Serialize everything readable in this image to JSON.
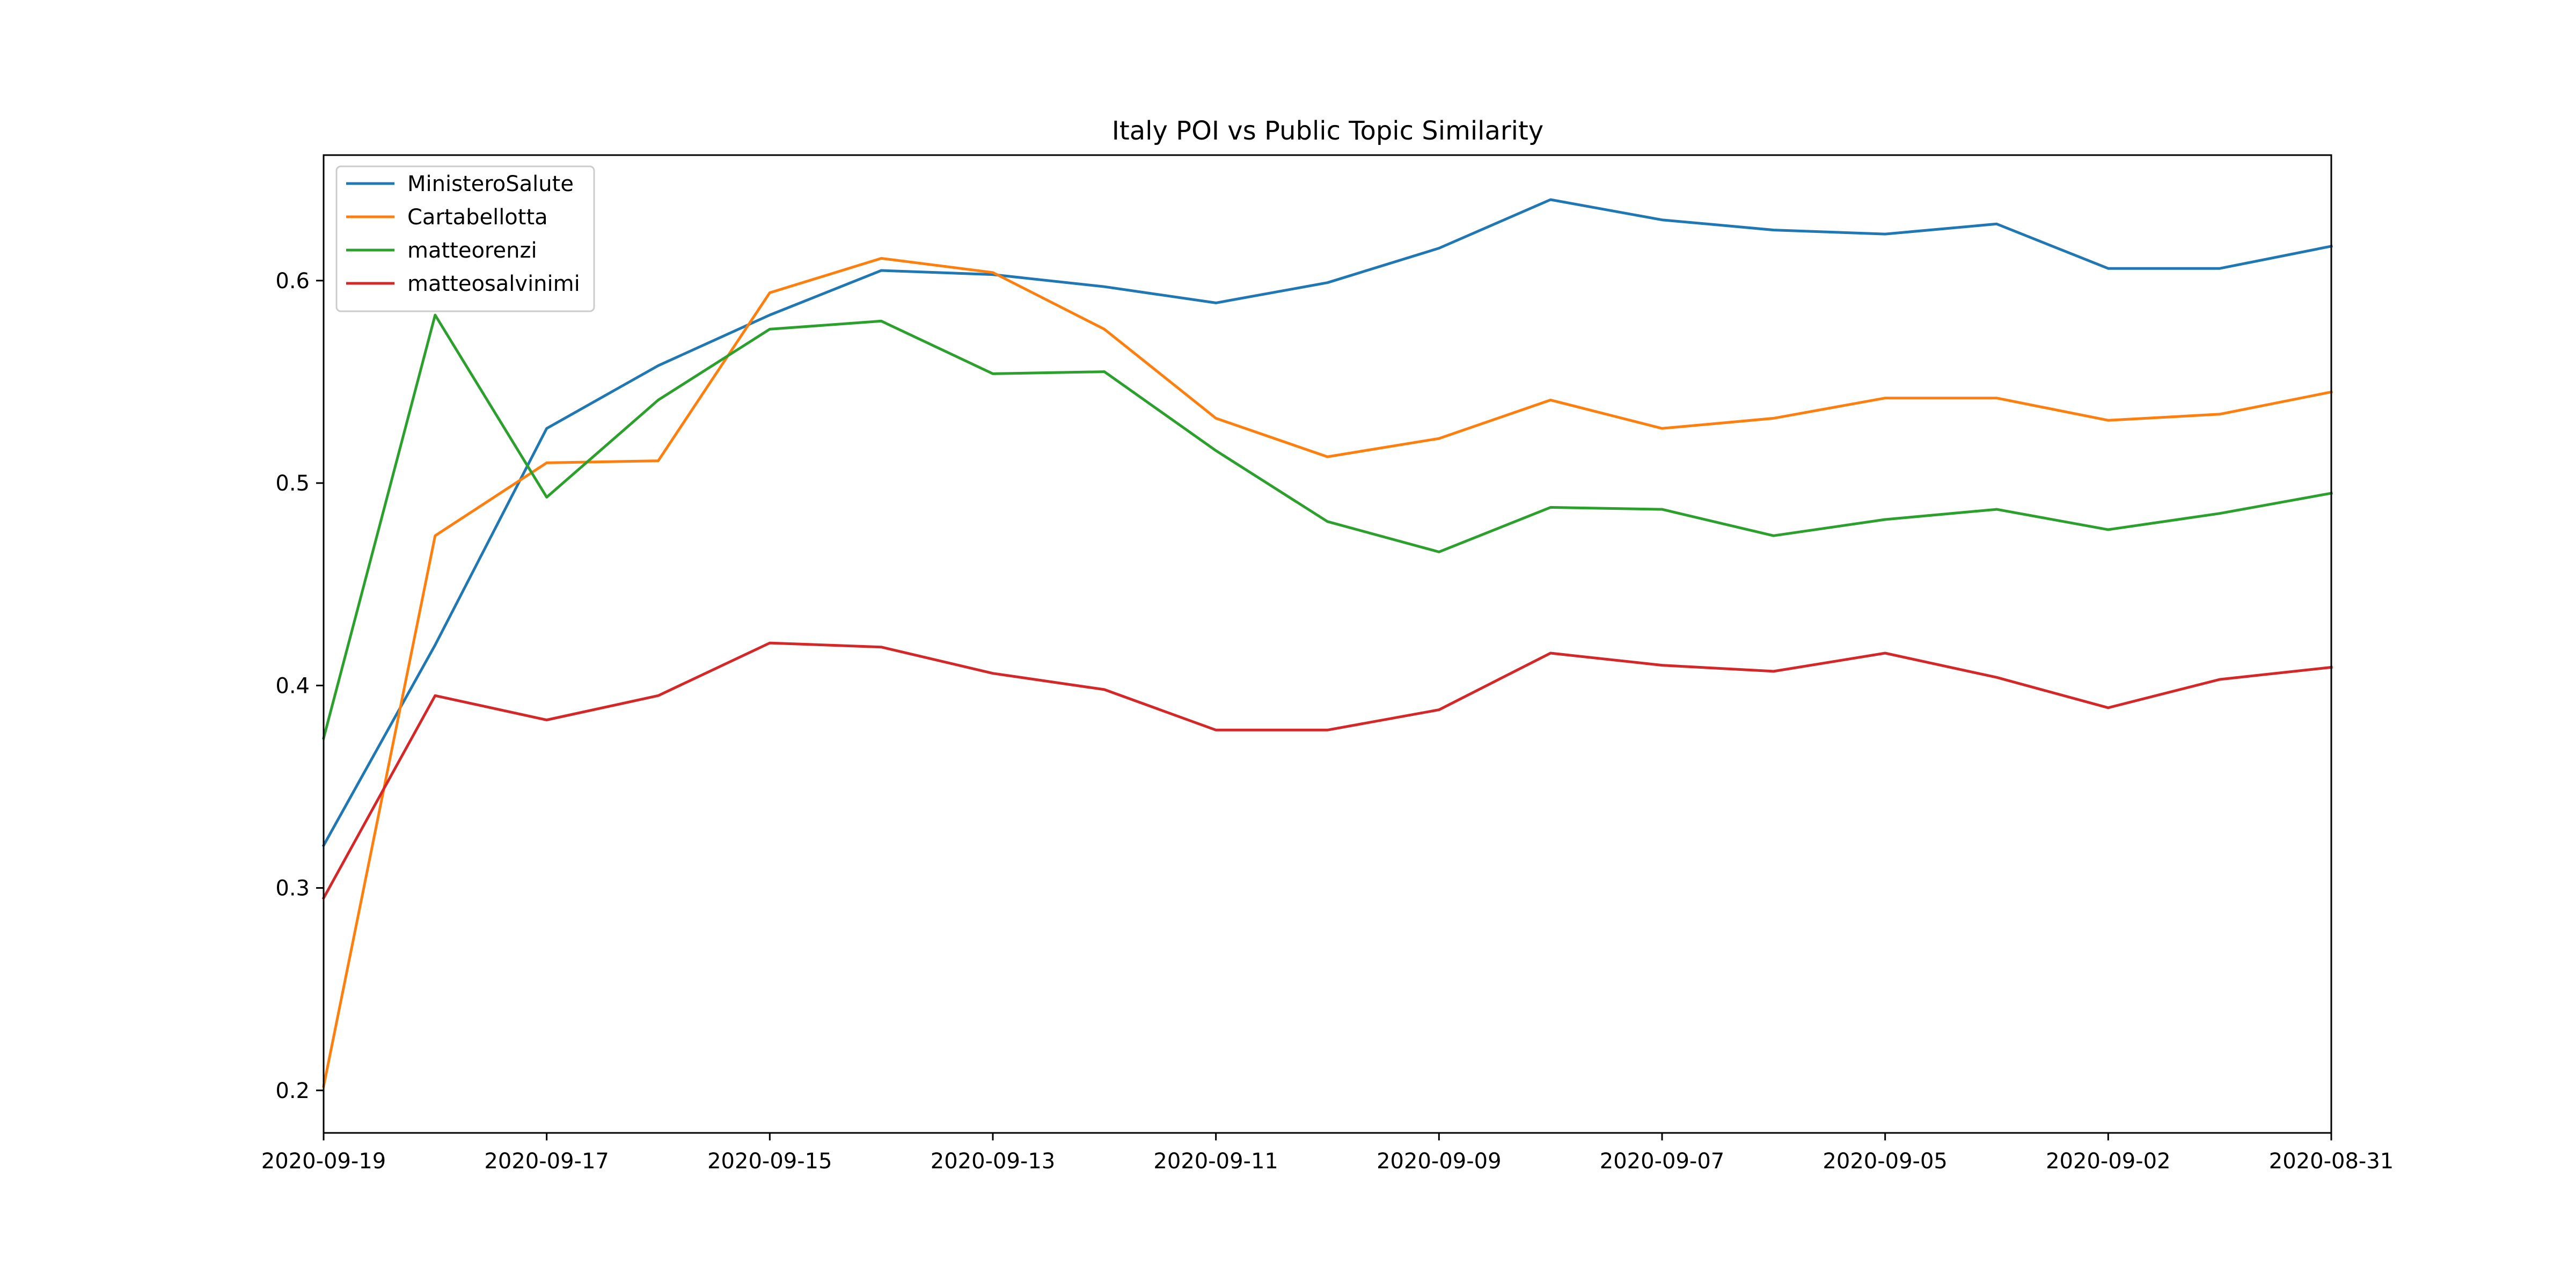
{
  "chart_data": {
    "type": "line",
    "title": "Italy POI vs Public Topic Similarity",
    "xlabel": "",
    "ylabel": "",
    "x": [
      "2020-09-19",
      "2020-09-18",
      "2020-09-17",
      "2020-09-16",
      "2020-09-15",
      "2020-09-14",
      "2020-09-13",
      "2020-09-12",
      "2020-09-11",
      "2020-09-10",
      "2020-09-09",
      "2020-09-08",
      "2020-09-07",
      "2020-09-06",
      "2020-09-05",
      "2020-09-04",
      "2020-09-02",
      "2020-09-01",
      "2020-08-31"
    ],
    "xticks": [
      "2020-09-19",
      "2020-09-17",
      "2020-09-15",
      "2020-09-13",
      "2020-09-11",
      "2020-09-09",
      "2020-09-07",
      "2020-09-05",
      "2020-09-02",
      "2020-08-31"
    ],
    "yticks": [
      0.2,
      0.3,
      0.4,
      0.5,
      0.6
    ],
    "ylim": [
      0.179,
      0.662
    ],
    "grid": false,
    "legend_position": "upper-left",
    "series": [
      {
        "name": "MinisteroSalute",
        "color": "#1f77b4",
        "values": [
          0.321,
          0.42,
          0.527,
          0.558,
          0.583,
          0.605,
          0.603,
          0.597,
          0.589,
          0.599,
          0.616,
          0.64,
          0.63,
          0.625,
          0.623,
          0.628,
          0.606,
          0.606,
          0.617
        ]
      },
      {
        "name": "Cartabellotta",
        "color": "#ff7f0e",
        "values": [
          0.202,
          0.474,
          0.51,
          0.511,
          0.594,
          0.611,
          0.604,
          0.576,
          0.532,
          0.513,
          0.522,
          0.541,
          0.527,
          0.532,
          0.542,
          0.542,
          0.531,
          0.534,
          0.545
        ]
      },
      {
        "name": "matteorenzi",
        "color": "#2ca02c",
        "values": [
          0.374,
          0.583,
          0.493,
          0.541,
          0.576,
          0.58,
          0.554,
          0.555,
          0.516,
          0.481,
          0.466,
          0.488,
          0.487,
          0.474,
          0.482,
          0.487,
          0.477,
          0.485,
          0.495
        ]
      },
      {
        "name": "matteosalvinimi",
        "color": "#d62728",
        "values": [
          0.295,
          0.395,
          0.383,
          0.395,
          0.421,
          0.419,
          0.406,
          0.398,
          0.378,
          0.378,
          0.388,
          0.416,
          0.41,
          0.407,
          0.416,
          0.404,
          0.389,
          0.403,
          0.409
        ]
      }
    ]
  }
}
